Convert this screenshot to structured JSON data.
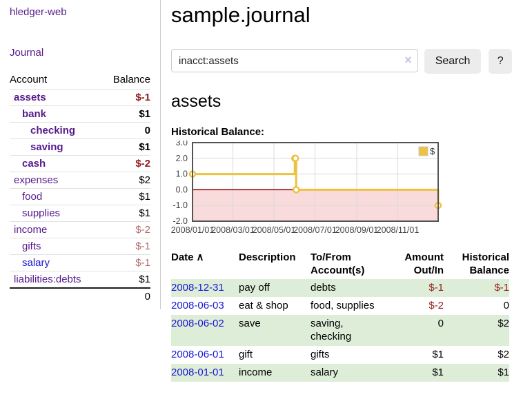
{
  "colors": {
    "link_purple": "#551a8b",
    "link_blue": "#1717d2",
    "negative_strong": "#8f1d1d",
    "negative_muted": "#b26d6d",
    "row_highlight_green": "#ddedd8",
    "series_gold": "#edc240"
  },
  "sidebar": {
    "app_title": "hledger-web",
    "journal_label": "Journal",
    "table": {
      "account_header": "Account",
      "balance_header": "Balance",
      "rows": [
        {
          "account": "assets",
          "balance": "$-1"
        },
        {
          "account": "bank",
          "balance": "$1"
        },
        {
          "account": "checking",
          "balance": "0"
        },
        {
          "account": "saving",
          "balance": "$1"
        },
        {
          "account": "cash",
          "balance": "$-2"
        },
        {
          "account": "expenses",
          "balance": "$2"
        },
        {
          "account": "food",
          "balance": "$1"
        },
        {
          "account": "supplies",
          "balance": "$1"
        },
        {
          "account": "income",
          "balance": "$-2"
        },
        {
          "account": "gifts",
          "balance": "$-1"
        },
        {
          "account": "salary",
          "balance": "$-1"
        },
        {
          "account": "liabilities:debts",
          "balance": "$1"
        }
      ],
      "total": "0"
    }
  },
  "main": {
    "title": "sample.journal",
    "search": {
      "value": "inacct:assets",
      "clear_icon": "×",
      "button_label": "Search",
      "help_label": "?"
    },
    "account_heading": "assets"
  },
  "chart_data": {
    "type": "line",
    "step": true,
    "title": "Historical Balance:",
    "series": [
      {
        "name": "$",
        "color": "#edc240",
        "points": [
          [
            "2008-01-01",
            1
          ],
          [
            "2008-06-01",
            2
          ],
          [
            "2008-06-02",
            2
          ],
          [
            "2008-06-03",
            0
          ],
          [
            "2008-12-31",
            -1
          ]
        ]
      }
    ],
    "ylim": [
      -2,
      3
    ],
    "y_ticks": [
      3.0,
      2.0,
      1.0,
      0.0,
      -1.0,
      -2.0
    ],
    "x_ticks": [
      "2008/01/01",
      "2008/03/01",
      "2008/05/01",
      "2008/07/01",
      "2008/09/01",
      "2008/11/01"
    ],
    "grid": true,
    "legend_position": "top-right",
    "negative_region_color": "#fadbdb",
    "zero_line_color": "#8b0000"
  },
  "transactions": {
    "headers": {
      "date": "Date",
      "sort_icon": "∧",
      "description": "Description",
      "tofrom": "To/From Account(s)",
      "amount": "Amount Out/In",
      "balance": "Historical Balance"
    },
    "rows": [
      {
        "date": "2008-12-31",
        "description": "pay off",
        "accounts": "debts",
        "amount": "$-1",
        "balance": "$-1"
      },
      {
        "date": "2008-06-03",
        "description": "eat & shop",
        "accounts": "food, supplies",
        "amount": "$-2",
        "balance": "0"
      },
      {
        "date": "2008-06-02",
        "description": "save",
        "accounts": "saving, checking",
        "amount": "0",
        "balance": "$2"
      },
      {
        "date": "2008-06-01",
        "description": "gift",
        "accounts": "gifts",
        "amount": "$1",
        "balance": "$2"
      },
      {
        "date": "2008-01-01",
        "description": "income",
        "accounts": "salary",
        "amount": "$1",
        "balance": "$1"
      }
    ]
  }
}
